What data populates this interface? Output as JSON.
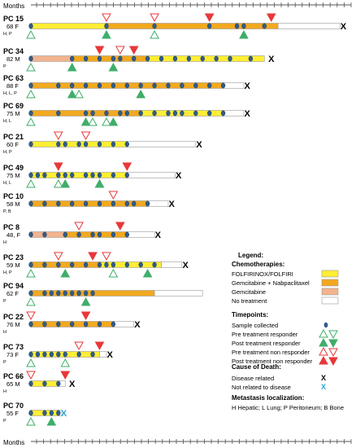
{
  "colors": {
    "folfirinox": "#ffee33",
    "gem_nab": "#f2a91f",
    "gemcitabine": "#f2b48f",
    "no_treatment": "#ffffff",
    "bar_stroke": "#9a9a9a",
    "sample": "#2f5d8c",
    "pre_responder": "#3fae6a",
    "post_responder": "#3fae6a",
    "pre_nonresponder": "#e8383a",
    "post_nonresponder": "#e8383a",
    "death_disease": "#000000",
    "death_other": "#2aa7d8"
  },
  "chart_data": {
    "type": "swimmer",
    "x_axis_label": "Months",
    "ticks": 36,
    "patients": [
      {
        "id": "PC 15",
        "demo": "68 F",
        "mets": "H, P",
        "segments": [
          {
            "t": "folfirinox",
            "s": 0,
            "e": 11
          },
          {
            "t": "gem_nab",
            "s": 11,
            "e": 36
          },
          {
            "t": "no_treatment",
            "s": 36,
            "e": 45
          }
        ],
        "samples": [
          0,
          11,
          18,
          26,
          30,
          31,
          34
        ],
        "pre_resp": [
          0,
          18
        ],
        "post_resp": [
          11,
          31
        ],
        "pre_nonresp": [
          11,
          18
        ],
        "post_nonresp": [
          26,
          35
        ],
        "death": {
          "x": 45.5,
          "cause": "disease"
        }
      },
      {
        "id": "PC 34",
        "demo": "82 M",
        "mets": "P",
        "segments": [
          {
            "t": "gemcitabine",
            "s": 0,
            "e": 6
          },
          {
            "t": "gem_nab",
            "s": 6,
            "e": 17
          },
          {
            "t": "folfirinox",
            "s": 17,
            "e": 34
          }
        ],
        "samples": [
          0,
          6,
          8,
          10,
          12,
          13,
          15,
          17,
          19,
          21,
          23,
          25,
          27,
          29,
          32
        ],
        "pre_resp": [
          0
        ],
        "post_resp": [
          6,
          12
        ],
        "pre_nonresp": [
          13
        ],
        "post_nonresp": [
          10,
          15
        ],
        "death": {
          "x": 35,
          "cause": "disease"
        }
      },
      {
        "id": "PC 63",
        "demo": "88 F",
        "mets": "H, L, P",
        "segments": [
          {
            "t": "gem_nab",
            "s": 0,
            "e": 28
          },
          {
            "t": "no_treatment",
            "s": 28,
            "e": 31
          }
        ],
        "samples": [
          0,
          4,
          6,
          8,
          10,
          12,
          14,
          16,
          18,
          20,
          22,
          24,
          26,
          28
        ],
        "pre_resp": [
          0,
          7
        ],
        "post_resp": [
          6,
          16
        ],
        "pre_nonresp": [],
        "post_nonresp": [],
        "death": {
          "x": 31.5,
          "cause": "disease"
        }
      },
      {
        "id": "PC 69",
        "demo": "75 M",
        "mets": "H, L",
        "segments": [
          {
            "t": "gem_nab",
            "s": 0,
            "e": 16
          },
          {
            "t": "folfirinox",
            "s": 16,
            "e": 28
          },
          {
            "t": "no_treatment",
            "s": 28,
            "e": 31
          }
        ],
        "samples": [
          0,
          4,
          8,
          9,
          11,
          13,
          14,
          16,
          18,
          20,
          21,
          22,
          24,
          26,
          28
        ],
        "pre_resp": [
          0,
          9,
          11
        ],
        "post_resp": [
          8,
          12
        ],
        "pre_nonresp": [],
        "post_nonresp": [],
        "death": {
          "x": 31.5,
          "cause": "disease"
        }
      },
      {
        "id": "PC 21",
        "demo": "60 F",
        "mets": "H, P",
        "segments": [
          {
            "t": "folfirinox",
            "s": 0,
            "e": 14
          },
          {
            "t": "no_treatment",
            "s": 14,
            "e": 24
          }
        ],
        "samples": [
          0,
          4,
          5,
          7,
          8,
          10,
          12,
          14
        ],
        "pre_resp": [],
        "post_resp": [],
        "pre_nonresp": [
          4,
          8
        ],
        "post_nonresp": [],
        "death": {
          "x": 24.5,
          "cause": "disease"
        }
      },
      {
        "id": "PC 49",
        "demo": "75 M",
        "mets": "H, L",
        "segments": [
          {
            "t": "folfirinox",
            "s": 0,
            "e": 14
          },
          {
            "t": "no_treatment",
            "s": 14,
            "e": 21
          }
        ],
        "samples": [
          0,
          1,
          2,
          4,
          5,
          6,
          8,
          9,
          10,
          12,
          14
        ],
        "pre_resp": [
          0,
          4,
          10
        ],
        "post_resp": [
          5,
          10
        ],
        "pre_nonresp": [],
        "post_nonresp": [
          4,
          14
        ],
        "death": {
          "x": 21.5,
          "cause": "disease"
        }
      },
      {
        "id": "PC 10",
        "demo": "58 M",
        "mets": "P, B",
        "segments": [
          {
            "t": "gem_nab",
            "s": 0,
            "e": 17
          },
          {
            "t": "no_treatment",
            "s": 17,
            "e": 20
          }
        ],
        "samples": [
          0,
          2,
          4,
          6,
          8,
          10,
          12,
          14,
          15,
          17
        ],
        "pre_resp": [],
        "post_resp": [],
        "pre_nonresp": [
          12
        ],
        "post_nonresp": [],
        "death": {
          "x": 20.5,
          "cause": "disease"
        }
      },
      {
        "id": "PC 8",
        "demo": "48, F",
        "mets": "H",
        "segments": [
          {
            "t": "gemcitabine",
            "s": 0,
            "e": 5
          },
          {
            "t": "gem_nab",
            "s": 5,
            "e": 14
          },
          {
            "t": "no_treatment",
            "s": 14,
            "e": 18
          }
        ],
        "samples": [
          0,
          2,
          5,
          7,
          9,
          10,
          12,
          14
        ],
        "pre_resp": [],
        "post_resp": [],
        "pre_nonresp": [
          7
        ],
        "post_nonresp": [
          13
        ],
        "death": {
          "x": 18.5,
          "cause": "disease"
        }
      },
      {
        "id": "PC 23",
        "demo": "59 M",
        "mets": "H, P",
        "segments": [
          {
            "t": "gem_nab",
            "s": 0,
            "e": 10
          },
          {
            "t": "folfirinox",
            "s": 10,
            "e": 19
          },
          {
            "t": "no_treatment",
            "s": 19,
            "e": 22
          }
        ],
        "samples": [
          0,
          2,
          4,
          6,
          8,
          10,
          11,
          12,
          14,
          16,
          18
        ],
        "pre_resp": [
          0,
          12
        ],
        "post_resp": [
          5,
          17
        ],
        "pre_nonresp": [
          4,
          11
        ],
        "post_nonresp": [
          9
        ],
        "death": {
          "x": 22.5,
          "cause": "disease"
        }
      },
      {
        "id": "PC 94",
        "demo": "62 F",
        "mets": "P",
        "segments": [
          {
            "t": "gem_nab",
            "s": 0,
            "e": 18
          },
          {
            "t": "no_treatment",
            "s": 18,
            "e": 25
          }
        ],
        "samples": [
          0,
          2,
          3,
          4,
          5,
          6,
          7,
          8,
          9
        ],
        "pre_resp": [
          0
        ],
        "post_resp": [
          8
        ],
        "pre_nonresp": [],
        "post_nonresp": [],
        "death": null
      },
      {
        "id": "PC 22",
        "demo": "76 M",
        "mets": "H",
        "segments": [
          {
            "t": "gem_nab",
            "s": 0,
            "e": 12
          },
          {
            "t": "no_treatment",
            "s": 12,
            "e": 15
          }
        ],
        "samples": [
          0,
          2,
          4,
          6,
          8,
          10,
          12
        ],
        "pre_resp": [],
        "post_resp": [],
        "pre_nonresp": [
          0
        ],
        "post_nonresp": [
          8
        ],
        "death": {
          "x": 15.5,
          "cause": "disease"
        }
      },
      {
        "id": "PC 73",
        "demo": "73 F",
        "mets": "P",
        "segments": [
          {
            "t": "folfirinox",
            "s": 0,
            "e": 10
          },
          {
            "t": "no_treatment",
            "s": 10,
            "e": 11
          }
        ],
        "samples": [
          0,
          1,
          2,
          3,
          4,
          5,
          7,
          9
        ],
        "pre_resp": [
          0,
          5
        ],
        "post_resp": [],
        "pre_nonresp": [
          7
        ],
        "post_nonresp": [
          10
        ],
        "death": {
          "x": 11.5,
          "cause": "disease"
        }
      },
      {
        "id": "PC 66",
        "demo": "65 M",
        "mets": "H",
        "segments": [
          {
            "t": "folfirinox",
            "s": 0,
            "e": 4
          },
          {
            "t": "no_treatment",
            "s": 4,
            "e": 5
          }
        ],
        "samples": [
          0,
          2,
          4
        ],
        "pre_resp": [],
        "post_resp": [],
        "pre_nonresp": [
          0
        ],
        "post_nonresp": [
          5
        ],
        "death": {
          "x": 6,
          "cause": "disease"
        }
      },
      {
        "id": "PC 70",
        "demo": "55 F",
        "mets": "P",
        "segments": [
          {
            "t": "folfirinox",
            "s": 0,
            "e": 4
          },
          {
            "t": "no_treatment",
            "s": 4,
            "e": 4.5
          }
        ],
        "samples": [
          0,
          2,
          3,
          4
        ],
        "pre_resp": [
          0
        ],
        "post_resp": [
          3
        ],
        "pre_nonresp": [],
        "post_nonresp": [],
        "death": {
          "x": 4.8,
          "cause": "other"
        }
      }
    ],
    "legend": {
      "title": "Legend:",
      "chemo_head": "Chemotherapies:",
      "chemo": [
        {
          "key": "folfirinox",
          "label": "FOLFIRINOX/FOLFIRI"
        },
        {
          "key": "gem_nab",
          "label": "Gemcitabine + Nabpaclitaxel"
        },
        {
          "key": "gemcitabine",
          "label": "Gemcitabine"
        },
        {
          "key": "no_treatment",
          "label": "No treatment"
        }
      ],
      "time_head": "Timepoints:",
      "time": [
        {
          "key": "sample",
          "label": "Sample collected"
        },
        {
          "key": "pre_resp",
          "label": "Pre treatment responder"
        },
        {
          "key": "post_resp",
          "label": "Post treatment responder"
        },
        {
          "key": "pre_nonresp",
          "label": "Pre treatment non responder"
        },
        {
          "key": "post_nonresp",
          "label": "Post treatment non responder"
        }
      ],
      "death_head": "Cause of Death:",
      "death": [
        {
          "key": "disease",
          "label": "Disease related",
          "symbol": "X"
        },
        {
          "key": "other",
          "label": "Not related to disease",
          "symbol": "X"
        }
      ],
      "mets_head": "Metastasis localization:",
      "mets_text": "H Hepatic; L Lung; P Peritoneum; B Bone"
    }
  }
}
